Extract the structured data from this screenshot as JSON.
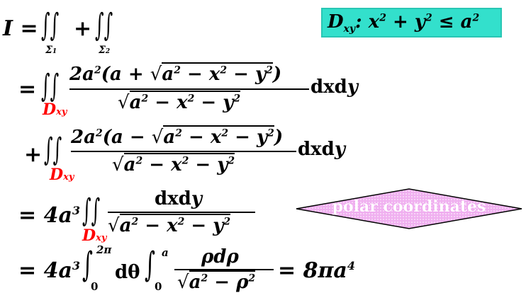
{
  "domain_box": {
    "text": "D",
    "sub": "xy",
    "rest": ": x",
    "exp1": "2",
    "plus": " + y",
    "exp2": "2",
    "le": " ≤ a",
    "exp3": "2",
    "bg_color": "#33e0cc"
  },
  "line1": {
    "lhs": "I =",
    "int1_sub": "Σ",
    "int1_subsub": "1",
    "plus": "+",
    "int2_sub": "Σ",
    "int2_subsub": "2"
  },
  "line2": {
    "eq": "=",
    "region": "D",
    "region_sub": "xy",
    "num": "2a",
    "num_exp": "2",
    "num_rest": "(a +",
    "num_rad": "a",
    "num_rad_e1": "2",
    "num_rad_mid": " − x",
    "num_rad_e2": "2",
    "num_rad_end": " − y",
    "num_rad_e3": "2",
    "num_close": ")",
    "den_rad": "a",
    "den_e1": "2",
    "den_mid": " − x",
    "den_e2": "2",
    "den_end": " − y",
    "den_e3": "2",
    "diff": "dxd",
    "diff_y": "y"
  },
  "line3": {
    "plus": "+",
    "region": "D",
    "region_sub": "xy",
    "num": "2a",
    "num_exp": "2",
    "num_rest": "(a −",
    "num_rad": "a",
    "num_rad_e1": "2",
    "num_rad_mid": " − x",
    "num_rad_e2": "2",
    "num_rad_end": " − y",
    "num_rad_e3": "2",
    "num_close": ")",
    "den_rad": "a",
    "den_e1": "2",
    "den_mid": " − x",
    "den_e2": "2",
    "den_end": " − y",
    "den_e3": "2",
    "diff": "dxd",
    "diff_y": "y"
  },
  "line4": {
    "lhs": "= 4a",
    "lhs_exp": "3",
    "region": "D",
    "region_sub": "xy",
    "num": "dxd",
    "num_y": "y",
    "den_rad": "a",
    "den_e1": "2",
    "den_mid": " − x",
    "den_e2": "2",
    "den_end": " − y",
    "den_e3": "2"
  },
  "polar": {
    "label": "polar coordinates",
    "fill_color": "#f0b0f0",
    "dot_color": "#ffffff"
  },
  "line5": {
    "lhs": "= 4a",
    "lhs_exp": "3",
    "int1_upper": "2π",
    "int1_lower": "0",
    "dtheta": "dθ",
    "int2_upper": "a",
    "int2_lower": "0",
    "num": "ρdρ",
    "den_rad": "a",
    "den_e1": "2",
    "den_mid": " − ρ",
    "den_e2": "2",
    "result": "= 8πa",
    "result_exp": "4"
  }
}
